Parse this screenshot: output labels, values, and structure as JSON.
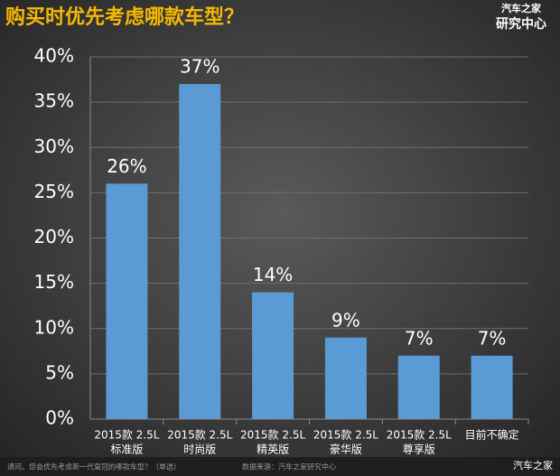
{
  "header": {
    "title": "购买时优先考虑哪款车型？",
    "logo_top": "汽车之家",
    "logo_bottom": "研究中心"
  },
  "chart_data": {
    "type": "bar",
    "categories": [
      [
        "2015款 2.5L",
        "标准版"
      ],
      [
        "2015款 2.5L",
        "时尚版"
      ],
      [
        "2015款 2.5L",
        "精英版"
      ],
      [
        "2015款 2.5L",
        "豪华版"
      ],
      [
        "2015款 2.5L",
        "尊享版"
      ],
      [
        "目前不确定"
      ]
    ],
    "values": [
      26,
      37,
      14,
      9,
      7,
      7
    ],
    "value_labels": [
      "26%",
      "37%",
      "14%",
      "9%",
      "7%",
      "7%"
    ],
    "color": "#5b9bd5",
    "ylim": [
      0,
      40
    ],
    "yticks": [
      {
        "value": 0,
        "label": "0%"
      },
      {
        "value": 5,
        "label": "5%"
      },
      {
        "value": 10,
        "label": "10%"
      },
      {
        "value": 15,
        "label": "15%"
      },
      {
        "value": 20,
        "label": "20%"
      },
      {
        "value": 25,
        "label": "25%"
      },
      {
        "value": 30,
        "label": "30%"
      },
      {
        "value": 35,
        "label": "35%"
      },
      {
        "value": 40,
        "label": "40%"
      }
    ],
    "grid": true
  },
  "footer": {
    "question": "请问，您会优先考虑新一代皇冠的哪款车型？（单选）",
    "source": "数据来源：汽车之家研究中心",
    "brand": "汽车之家"
  }
}
